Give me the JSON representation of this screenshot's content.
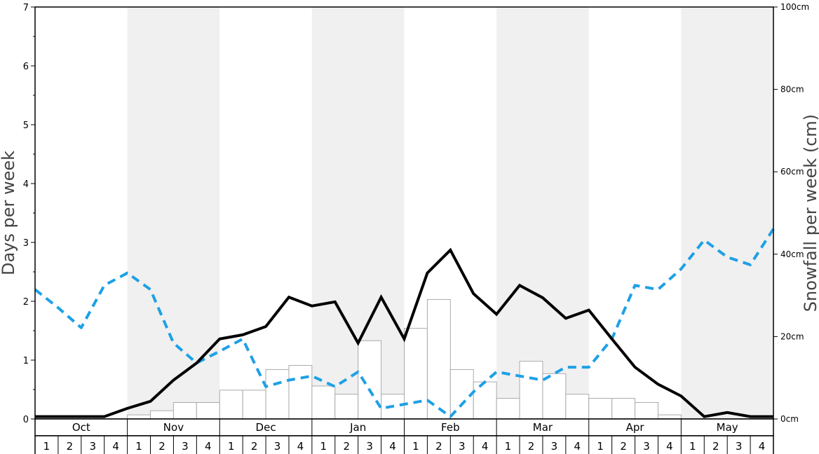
{
  "chart_data": {
    "type": "bar+line",
    "title": "",
    "ylabel_left": "Days per week",
    "ylabel_right": "Snowfall per week (cm)",
    "ylim_left": [
      0,
      7
    ],
    "ylim_right": [
      0,
      100
    ],
    "left_ticks": [
      "0",
      "1",
      "2",
      "3",
      "4",
      "5",
      "6",
      "7"
    ],
    "right_ticks": [
      "0cm",
      "20cm",
      "40cm",
      "60cm",
      "80cm",
      "100cm"
    ],
    "months": [
      "Oct",
      "Nov",
      "Dec",
      "Jan",
      "Feb",
      "Mar",
      "Apr",
      "May"
    ],
    "weeks_per_month": [
      "1",
      "2",
      "3",
      "4"
    ],
    "snowfall_cm": [
      0,
      0,
      0,
      0,
      1,
      2,
      4,
      4,
      7,
      7,
      12,
      13,
      8,
      6,
      19,
      6,
      22,
      29,
      12,
      9,
      5,
      14,
      11,
      6,
      5,
      5,
      4,
      1,
      0,
      0,
      0,
      0
    ],
    "snow_days": [
      0.04,
      0.04,
      0.04,
      0.04,
      0.18,
      0.3,
      0.66,
      0.95,
      1.36,
      1.43,
      1.57,
      2.07,
      1.92,
      1.99,
      1.29,
      2.07,
      1.36,
      2.48,
      2.87,
      2.13,
      1.78,
      2.27,
      2.06,
      1.71,
      1.85,
      1.36,
      0.88,
      0.59,
      0.39,
      0.04,
      0.11,
      0.04,
      0.04
    ],
    "blue_dashed": [
      2.2,
      1.89,
      1.55,
      2.27,
      2.48,
      2.2,
      1.29,
      0.95,
      1.15,
      1.36,
      0.55,
      0.66,
      0.73,
      0.55,
      0.8,
      0.18,
      0.25,
      0.32,
      0.04,
      0.46,
      0.8,
      0.73,
      0.66,
      0.88,
      0.88,
      1.36,
      2.27,
      2.2,
      2.55,
      3.04,
      2.75,
      2.62,
      3.23
    ],
    "colors": {
      "bar_fill": "#ffffff",
      "bar_stroke": "#aaaaaa",
      "shade": "#f0f0f0",
      "line_black": "#000000",
      "line_blue": "#1ea0e6"
    }
  }
}
